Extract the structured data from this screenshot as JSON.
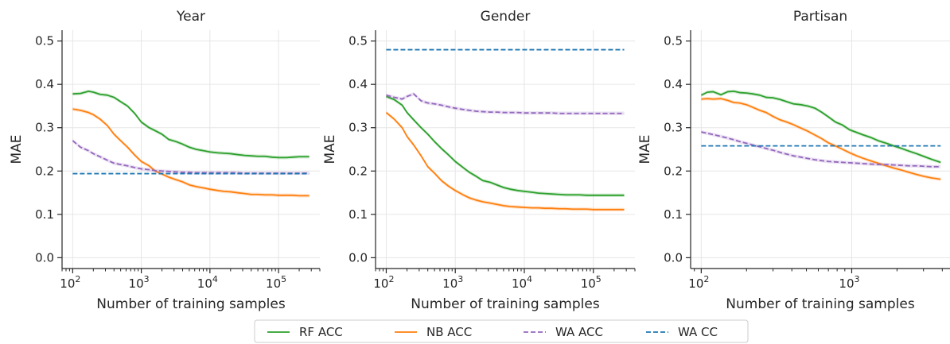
{
  "chart_data": [
    {
      "type": "line",
      "title": "Year",
      "xlabel": "Number of training samples",
      "ylabel": "MAE",
      "xscale": "log",
      "xlim": [
        70,
        400000
      ],
      "ylim": [
        -0.025,
        0.525
      ],
      "yticks": [
        "0.0",
        "0.1",
        "0.2",
        "0.3",
        "0.4",
        "0.5"
      ],
      "xticks": [
        {
          "base": "10",
          "exp": "2",
          "value": 100
        },
        {
          "base": "10",
          "exp": "3",
          "value": 1000
        },
        {
          "base": "10",
          "exp": "4",
          "value": 10000
        },
        {
          "base": "10",
          "exp": "5",
          "value": 100000
        }
      ],
      "grid": true,
      "series": [
        {
          "name": "RF ACC",
          "x": [
            100,
            130,
            170,
            200,
            250,
            320,
            400,
            500,
            630,
            800,
            1000,
            1300,
            1600,
            2000,
            2500,
            3200,
            4000,
            5000,
            6300,
            8000,
            10000,
            13000,
            16000,
            20000,
            25000,
            32000,
            40000,
            50000,
            63000,
            80000,
            100000,
            130000,
            160000,
            200000,
            280000
          ],
          "y": [
            0.378,
            0.379,
            0.384,
            0.382,
            0.377,
            0.375,
            0.37,
            0.36,
            0.35,
            0.333,
            0.313,
            0.3,
            0.293,
            0.285,
            0.273,
            0.268,
            0.262,
            0.255,
            0.25,
            0.247,
            0.244,
            0.242,
            0.241,
            0.24,
            0.238,
            0.236,
            0.235,
            0.234,
            0.234,
            0.232,
            0.231,
            0.231,
            0.232,
            0.233,
            0.233
          ]
        },
        {
          "name": "NB ACC",
          "x": [
            100,
            130,
            170,
            200,
            250,
            320,
            400,
            500,
            630,
            800,
            1000,
            1300,
            1600,
            2000,
            2500,
            3200,
            4000,
            5000,
            6300,
            8000,
            10000,
            13000,
            16000,
            20000,
            25000,
            32000,
            40000,
            50000,
            63000,
            80000,
            100000,
            130000,
            160000,
            200000,
            280000
          ],
          "y": [
            0.343,
            0.34,
            0.335,
            0.33,
            0.32,
            0.305,
            0.285,
            0.27,
            0.255,
            0.237,
            0.222,
            0.212,
            0.2,
            0.193,
            0.186,
            0.18,
            0.175,
            0.168,
            0.164,
            0.161,
            0.158,
            0.155,
            0.153,
            0.152,
            0.15,
            0.148,
            0.146,
            0.146,
            0.145,
            0.145,
            0.144,
            0.144,
            0.144,
            0.143,
            0.143
          ]
        },
        {
          "name": "WA ACC",
          "x": [
            100,
            130,
            170,
            200,
            250,
            320,
            400,
            500,
            630,
            800,
            1000,
            1300,
            1600,
            2000,
            2500,
            3200,
            4000,
            5000,
            6300,
            8000,
            10000,
            13000,
            16000,
            20000,
            25000,
            32000,
            40000,
            50000,
            63000,
            80000,
            100000,
            130000,
            160000,
            200000,
            280000
          ],
          "y": [
            0.27,
            0.255,
            0.247,
            0.24,
            0.233,
            0.225,
            0.218,
            0.215,
            0.212,
            0.208,
            0.205,
            0.203,
            0.201,
            0.2,
            0.199,
            0.198,
            0.197,
            0.197,
            0.196,
            0.196,
            0.196,
            0.196,
            0.196,
            0.196,
            0.196,
            0.195,
            0.195,
            0.195,
            0.195,
            0.195,
            0.195,
            0.195,
            0.195,
            0.195,
            0.195
          ]
        },
        {
          "name": "WA CC",
          "x": [
            100,
            280000
          ],
          "y": [
            0.194,
            0.194
          ]
        }
      ]
    },
    {
      "type": "line",
      "title": "Gender",
      "xlabel": "Number of training samples",
      "ylabel": "MAE",
      "xscale": "log",
      "xlim": [
        70,
        400000
      ],
      "ylim": [
        -0.025,
        0.525
      ],
      "yticks": [
        "0.0",
        "0.1",
        "0.2",
        "0.3",
        "0.4",
        "0.5"
      ],
      "xticks": [
        {
          "base": "10",
          "exp": "2",
          "value": 100
        },
        {
          "base": "10",
          "exp": "3",
          "value": 1000
        },
        {
          "base": "10",
          "exp": "4",
          "value": 10000
        },
        {
          "base": "10",
          "exp": "5",
          "value": 100000
        }
      ],
      "grid": true,
      "series": [
        {
          "name": "RF ACC",
          "x": [
            100,
            130,
            170,
            200,
            250,
            320,
            400,
            500,
            630,
            800,
            1000,
            1300,
            1600,
            2000,
            2500,
            3200,
            4000,
            5000,
            6300,
            8000,
            10000,
            13000,
            16000,
            20000,
            25000,
            32000,
            40000,
            50000,
            63000,
            80000,
            100000,
            130000,
            160000,
            200000,
            280000
          ],
          "y": [
            0.372,
            0.365,
            0.352,
            0.335,
            0.318,
            0.3,
            0.285,
            0.268,
            0.252,
            0.237,
            0.222,
            0.208,
            0.197,
            0.188,
            0.178,
            0.174,
            0.168,
            0.162,
            0.158,
            0.155,
            0.153,
            0.151,
            0.149,
            0.148,
            0.147,
            0.146,
            0.145,
            0.145,
            0.145,
            0.144,
            0.144,
            0.144,
            0.144,
            0.144,
            0.144
          ]
        },
        {
          "name": "NB ACC",
          "x": [
            100,
            130,
            170,
            200,
            250,
            320,
            400,
            500,
            630,
            800,
            1000,
            1300,
            1600,
            2000,
            2500,
            3200,
            4000,
            5000,
            6300,
            8000,
            10000,
            13000,
            16000,
            20000,
            25000,
            32000,
            40000,
            50000,
            63000,
            80000,
            100000,
            130000,
            160000,
            200000,
            280000
          ],
          "y": [
            0.335,
            0.32,
            0.3,
            0.28,
            0.26,
            0.235,
            0.21,
            0.195,
            0.178,
            0.165,
            0.155,
            0.145,
            0.138,
            0.133,
            0.129,
            0.126,
            0.123,
            0.12,
            0.118,
            0.117,
            0.116,
            0.115,
            0.115,
            0.114,
            0.114,
            0.113,
            0.113,
            0.112,
            0.112,
            0.112,
            0.111,
            0.111,
            0.111,
            0.111,
            0.111
          ]
        },
        {
          "name": "WA ACC",
          "x": [
            100,
            130,
            170,
            200,
            250,
            320,
            400,
            500,
            630,
            800,
            1000,
            1300,
            1600,
            2000,
            2500,
            3200,
            4000,
            5000,
            6300,
            8000,
            10000,
            13000,
            16000,
            20000,
            25000,
            32000,
            40000,
            50000,
            63000,
            80000,
            100000,
            130000,
            160000,
            200000,
            280000
          ],
          "y": [
            0.375,
            0.37,
            0.366,
            0.372,
            0.378,
            0.362,
            0.357,
            0.355,
            0.352,
            0.348,
            0.345,
            0.342,
            0.34,
            0.338,
            0.337,
            0.336,
            0.336,
            0.335,
            0.335,
            0.335,
            0.334,
            0.334,
            0.334,
            0.334,
            0.334,
            0.333,
            0.333,
            0.333,
            0.333,
            0.333,
            0.333,
            0.333,
            0.333,
            0.333,
            0.333
          ]
        },
        {
          "name": "WA CC",
          "x": [
            100,
            280000
          ],
          "y": [
            0.48,
            0.48
          ]
        }
      ]
    },
    {
      "type": "line",
      "title": "Partisan",
      "xlabel": "Number of training samples",
      "ylabel": "MAE",
      "xscale": "log",
      "xlim": [
        85,
        4500
      ],
      "ylim": [
        -0.025,
        0.525
      ],
      "yticks": [
        "0.0",
        "0.1",
        "0.2",
        "0.3",
        "0.4",
        "0.5"
      ],
      "xticks": [
        {
          "base": "10",
          "exp": "2",
          "value": 100
        },
        {
          "base": "10",
          "exp": "3",
          "value": 1000
        }
      ],
      "grid": true,
      "series": [
        {
          "name": "RF ACC",
          "x": [
            100,
            110,
            120,
            135,
            150,
            165,
            180,
            200,
            220,
            245,
            270,
            300,
            335,
            370,
            410,
            460,
            510,
            570,
            630,
            700,
            780,
            870,
            970,
            1080,
            1200,
            1350,
            1500,
            1700,
            1900,
            2150,
            2400,
            2700,
            3000,
            3400,
            3900
          ],
          "y": [
            0.375,
            0.382,
            0.383,
            0.376,
            0.383,
            0.384,
            0.381,
            0.38,
            0.378,
            0.375,
            0.37,
            0.369,
            0.365,
            0.36,
            0.355,
            0.353,
            0.35,
            0.345,
            0.336,
            0.325,
            0.313,
            0.306,
            0.295,
            0.289,
            0.283,
            0.277,
            0.27,
            0.264,
            0.258,
            0.252,
            0.246,
            0.24,
            0.234,
            0.227,
            0.22
          ]
        },
        {
          "name": "NB ACC",
          "x": [
            100,
            110,
            120,
            135,
            150,
            165,
            180,
            200,
            220,
            245,
            270,
            300,
            335,
            370,
            410,
            460,
            510,
            570,
            630,
            700,
            780,
            870,
            970,
            1080,
            1200,
            1350,
            1500,
            1700,
            1900,
            2150,
            2400,
            2700,
            3000,
            3400,
            3900
          ],
          "y": [
            0.366,
            0.367,
            0.366,
            0.367,
            0.363,
            0.358,
            0.357,
            0.353,
            0.347,
            0.34,
            0.335,
            0.326,
            0.318,
            0.313,
            0.307,
            0.299,
            0.292,
            0.283,
            0.275,
            0.265,
            0.258,
            0.25,
            0.242,
            0.235,
            0.229,
            0.223,
            0.218,
            0.212,
            0.207,
            0.202,
            0.197,
            0.192,
            0.188,
            0.184,
            0.181
          ]
        },
        {
          "name": "WA ACC",
          "x": [
            100,
            110,
            120,
            135,
            150,
            165,
            180,
            200,
            220,
            245,
            270,
            300,
            335,
            370,
            410,
            460,
            510,
            570,
            630,
            700,
            780,
            870,
            970,
            1080,
            1200,
            1350,
            1500,
            1700,
            1900,
            2150,
            2400,
            2700,
            3000,
            3400,
            3900
          ],
          "y": [
            0.29,
            0.287,
            0.284,
            0.28,
            0.276,
            0.272,
            0.268,
            0.264,
            0.26,
            0.256,
            0.252,
            0.248,
            0.243,
            0.239,
            0.235,
            0.232,
            0.229,
            0.226,
            0.224,
            0.222,
            0.221,
            0.22,
            0.219,
            0.218,
            0.217,
            0.216,
            0.215,
            0.215,
            0.214,
            0.213,
            0.212,
            0.212,
            0.211,
            0.21,
            0.21
          ]
        },
        {
          "name": "WA CC",
          "x": [
            100,
            3900
          ],
          "y": [
            0.258,
            0.258
          ]
        }
      ]
    }
  ],
  "legend": {
    "placement": "bottom-center",
    "entries": [
      {
        "label": "RF ACC",
        "color": "#2ca02c",
        "dash": "solid"
      },
      {
        "label": "NB ACC",
        "color": "#ff7f0e",
        "dash": "solid"
      },
      {
        "label": "WA ACC",
        "color": "#9467bd",
        "dash": "dashed"
      },
      {
        "label": "WA CC",
        "color": "#1f77b4",
        "dash": "dashed"
      }
    ]
  },
  "colors": {
    "RF ACC": "#2ca02c",
    "NB ACC": "#ff7f0e",
    "WA ACC": "#9467bd",
    "WA CC": "#1f77b4"
  }
}
